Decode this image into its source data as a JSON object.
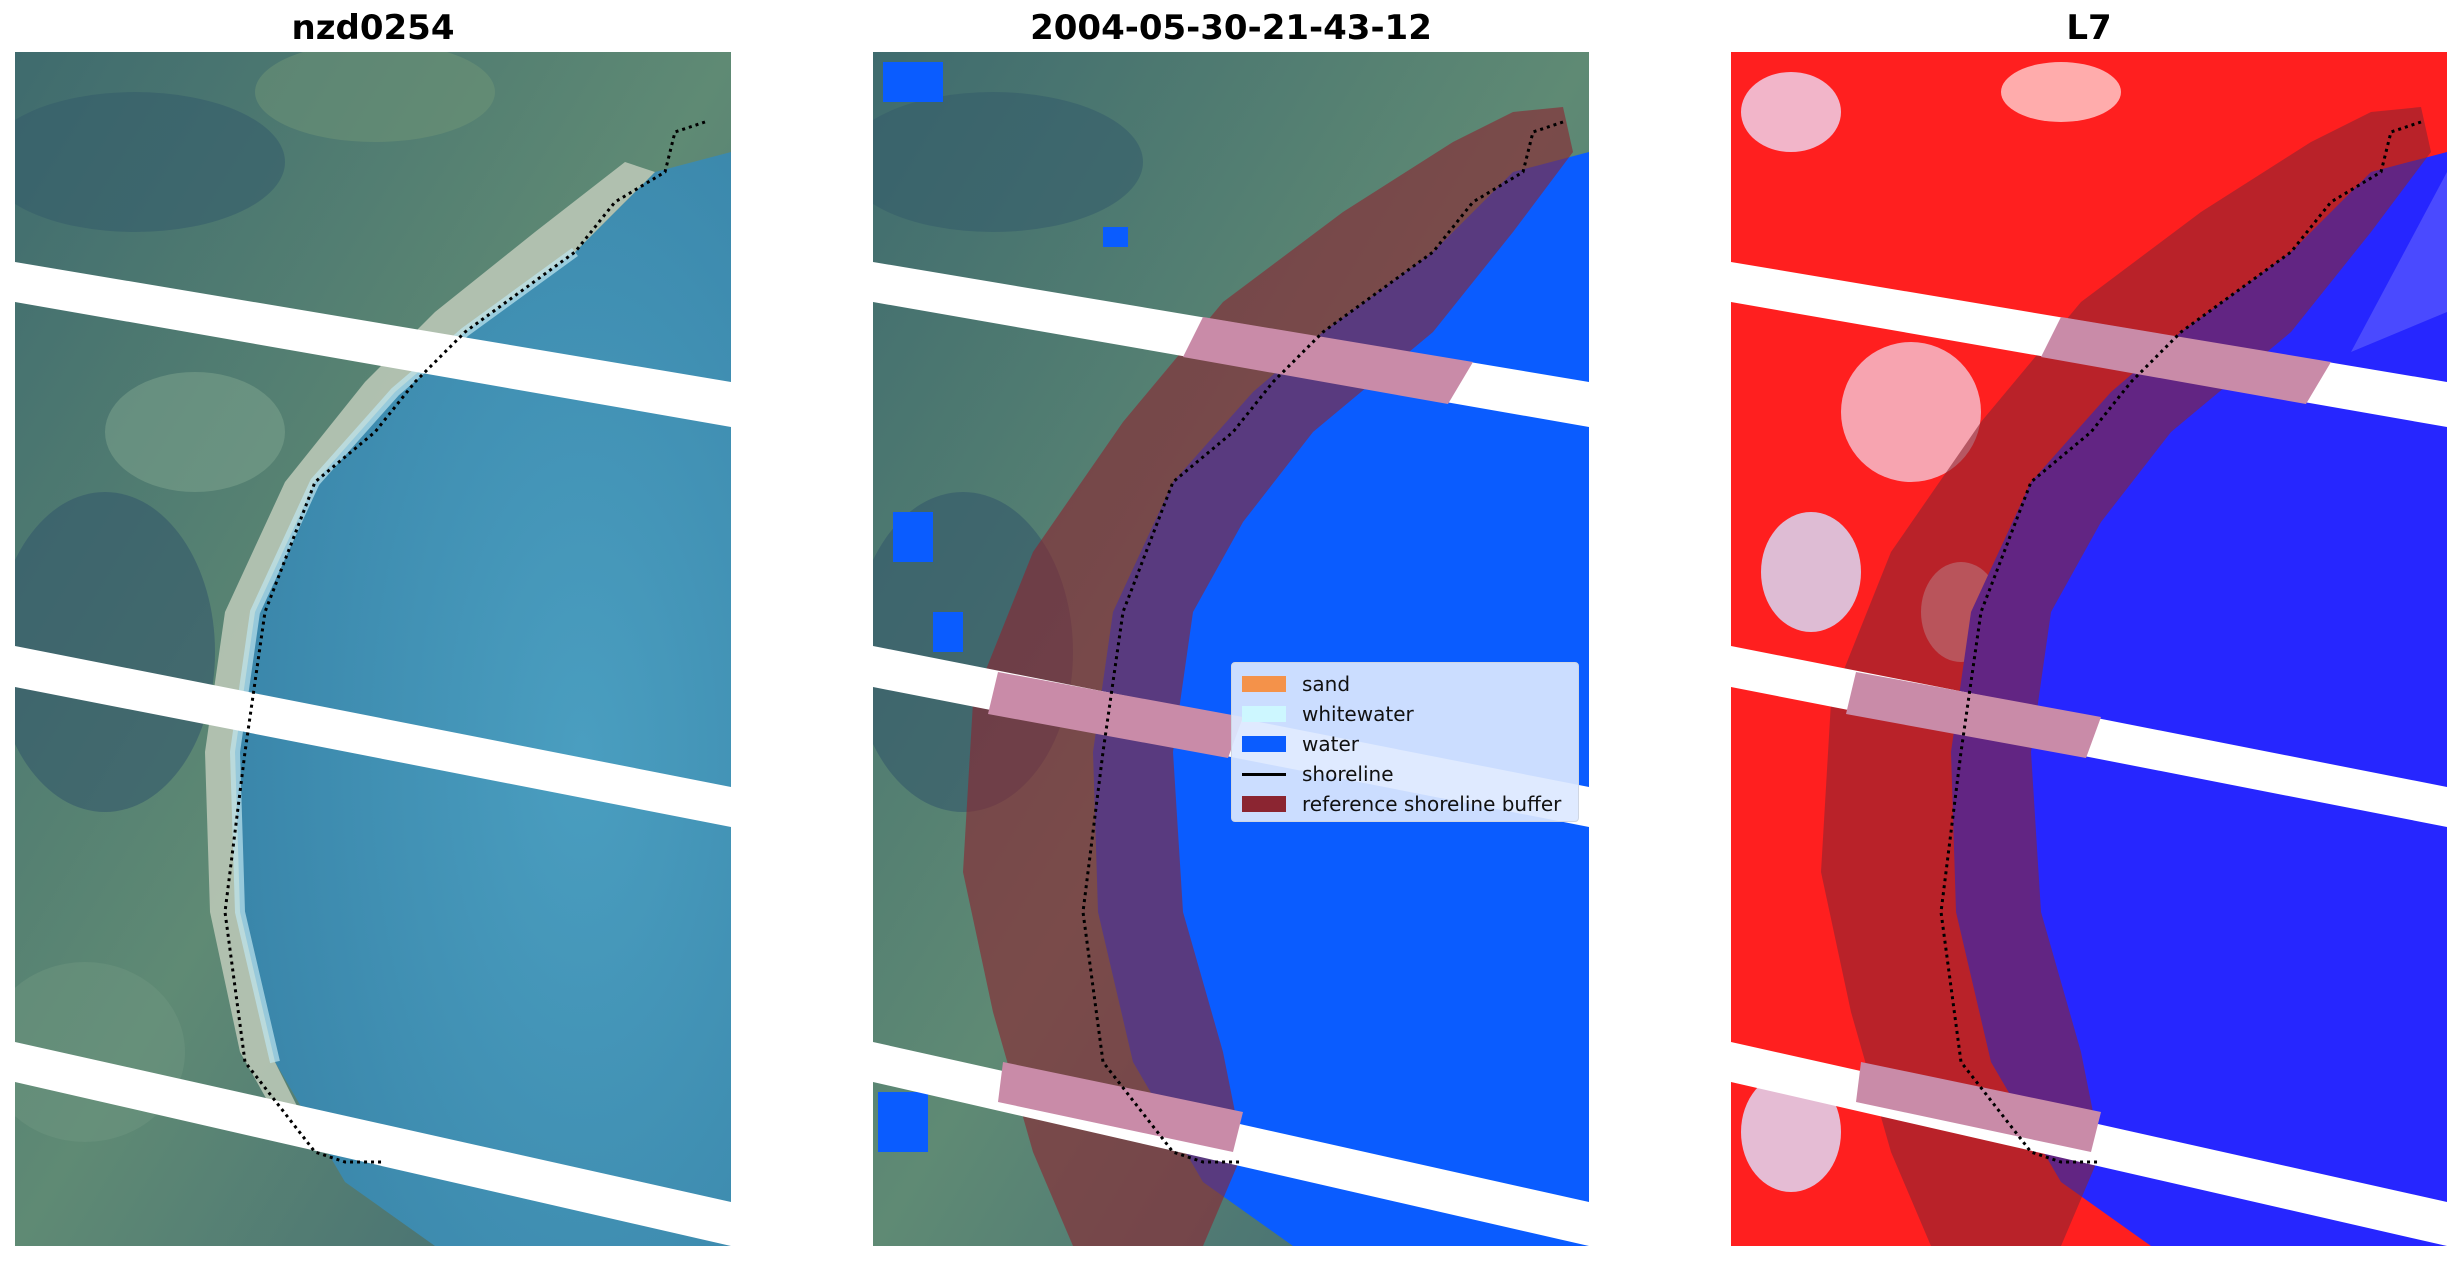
{
  "panels": [
    {
      "title": "nzd0254",
      "kind": "rgb"
    },
    {
      "title": "2004-05-30-21-43-12",
      "kind": "classified"
    },
    {
      "title": "L7",
      "kind": "index"
    }
  ],
  "legend": {
    "items": [
      {
        "label": "sand",
        "color": "#f4924a",
        "type": "patch"
      },
      {
        "label": "whitewater",
        "color": "#cdf7ff",
        "type": "patch"
      },
      {
        "label": "water",
        "color": "#0a5cff",
        "type": "patch"
      },
      {
        "label": "shoreline",
        "color": "#000000",
        "type": "line"
      },
      {
        "label": "reference shoreline buffer",
        "color": "#8b2531",
        "type": "patch"
      }
    ]
  },
  "colors": {
    "land": "#4f7a78",
    "water_rgb": "#3f8fb2",
    "water_class": "#0a5cff",
    "buffer": "#8b2531",
    "index_land": "#ff1f1f",
    "index_water": "#2626ff",
    "gap": "#ffffff"
  }
}
